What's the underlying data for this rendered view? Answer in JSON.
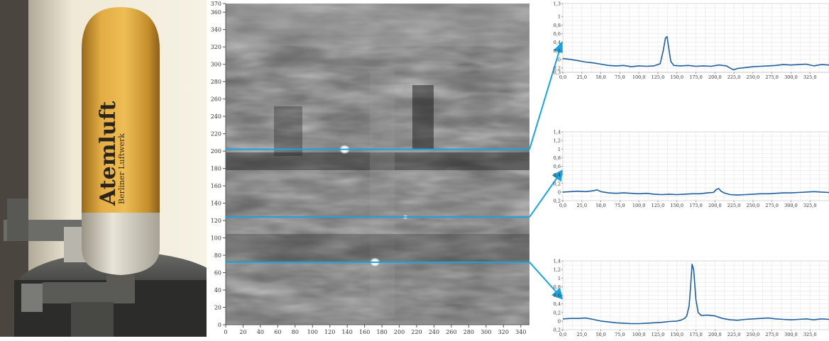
{
  "photo": {
    "cylinder_label": "Atemluft",
    "cylinder_sublabel": "Berliner Luftwerk",
    "colors": {
      "cylinder": "#d9a437",
      "background": "#e8e3d2"
    }
  },
  "scan_chart": {
    "type": "heatmap",
    "xlim": [
      0,
      350
    ],
    "ylim": [
      0,
      370
    ],
    "x_ticks": [
      0,
      20,
      40,
      60,
      80,
      100,
      120,
      140,
      160,
      180,
      200,
      220,
      240,
      260,
      280,
      300,
      320,
      340
    ],
    "y_ticks": [
      0,
      20,
      40,
      60,
      80,
      100,
      120,
      140,
      160,
      180,
      200,
      220,
      240,
      260,
      280,
      300,
      320,
      340,
      360,
      370
    ],
    "y_tick_labels": [
      "0",
      "20",
      "40",
      "60",
      "80",
      "100",
      "120",
      "140",
      "160",
      "180",
      "200",
      "220",
      "240",
      "260",
      "280",
      "300",
      "320",
      "340",
      "360",
      "370"
    ],
    "x_tick_labels": [
      "0",
      "20",
      "40",
      "60",
      "80",
      "100",
      "120",
      "140",
      "160",
      "180",
      "200",
      "220",
      "240",
      "260",
      "280",
      "300",
      "320",
      "340"
    ],
    "grayscale": true,
    "bright_spots": [
      {
        "x": 137,
        "y": 202
      },
      {
        "x": 172,
        "y": 72
      },
      {
        "x": 207,
        "y": 124
      }
    ],
    "scan_lines": [
      {
        "y": 202,
        "color": "#1aa3e0"
      },
      {
        "y": 124,
        "color": "#1aa3e0"
      },
      {
        "y": 72,
        "color": "#1aa3e0"
      }
    ]
  },
  "chart_data": [
    {
      "type": "line",
      "xlim": [
        0,
        350
      ],
      "ylim": [
        -0.3,
        1.3
      ],
      "x_tick_labels": [
        "0,0",
        "25,0",
        "50,0",
        "75,0",
        "100,0",
        "125,0",
        "150,0",
        "175,0",
        "200,0",
        "225,0",
        "250,0",
        "275,0",
        "300,0",
        "325,0"
      ],
      "y_tick_labels": [
        "1,3",
        "1",
        "0,8",
        "0,6",
        "0,4",
        "0,2",
        "0",
        "-0,2",
        "-0,3"
      ],
      "y_tick_values": [
        1.3,
        1.0,
        0.8,
        0.6,
        0.4,
        0.2,
        0.0,
        -0.2,
        -0.3
      ],
      "series": [
        {
          "color": "#1f5f9e",
          "x": [
            0,
            10,
            20,
            30,
            40,
            50,
            60,
            70,
            80,
            90,
            100,
            110,
            120,
            128,
            132,
            135,
            137,
            139,
            142,
            146,
            155,
            165,
            175,
            185,
            195,
            205,
            215,
            222,
            225,
            230,
            240,
            250,
            260,
            270,
            280,
            290,
            300,
            310,
            320,
            330,
            340,
            350
          ],
          "y": [
            0.02,
            0.0,
            -0.03,
            -0.06,
            -0.08,
            -0.11,
            -0.14,
            -0.15,
            -0.14,
            -0.17,
            -0.15,
            -0.16,
            -0.15,
            -0.1,
            0.2,
            0.5,
            0.53,
            0.3,
            -0.05,
            -0.14,
            -0.15,
            -0.14,
            -0.16,
            -0.15,
            -0.16,
            -0.13,
            -0.15,
            -0.22,
            -0.24,
            -0.21,
            -0.19,
            -0.17,
            -0.16,
            -0.15,
            -0.14,
            -0.12,
            -0.13,
            -0.12,
            -0.11,
            -0.15,
            -0.12,
            -0.13
          ]
        }
      ]
    },
    {
      "type": "line",
      "xlim": [
        0,
        350
      ],
      "ylim": [
        -0.2,
        1.4
      ],
      "x_tick_labels": [
        "0,0",
        "25,0",
        "50,0",
        "75,0",
        "100,0",
        "125,0",
        "150,0",
        "175,0",
        "200,0",
        "225,0",
        "250,0",
        "275,0",
        "300,0",
        "325,0"
      ],
      "y_tick_labels": [
        "1,4",
        "1,2",
        "1",
        "0,8",
        "0,6",
        "0,4",
        "0,2",
        "0",
        "-0,2"
      ],
      "y_tick_values": [
        1.4,
        1.2,
        1.0,
        0.8,
        0.6,
        0.4,
        0.2,
        0.0,
        -0.2
      ],
      "series": [
        {
          "color": "#1f5f9e",
          "x": [
            0,
            10,
            20,
            30,
            40,
            45,
            50,
            60,
            70,
            80,
            90,
            100,
            110,
            120,
            130,
            140,
            150,
            160,
            170,
            180,
            190,
            198,
            202,
            205,
            208,
            212,
            220,
            230,
            240,
            250,
            260,
            270,
            280,
            290,
            300,
            310,
            320,
            330,
            340,
            350
          ],
          "y": [
            0.0,
            0.01,
            0.02,
            0.01,
            0.03,
            0.05,
            0.01,
            -0.02,
            -0.03,
            -0.02,
            -0.03,
            -0.04,
            -0.03,
            -0.05,
            -0.06,
            -0.05,
            -0.06,
            -0.05,
            -0.04,
            -0.04,
            -0.02,
            -0.01,
            0.06,
            0.08,
            0.02,
            -0.02,
            -0.06,
            -0.07,
            -0.06,
            -0.05,
            -0.04,
            -0.04,
            -0.03,
            -0.02,
            -0.02,
            -0.01,
            0.0,
            0.01,
            0.0,
            -0.01
          ]
        }
      ]
    },
    {
      "type": "line",
      "xlim": [
        0,
        350
      ],
      "ylim": [
        -0.2,
        1.4
      ],
      "x_tick_labels": [
        "0,0",
        "25,0",
        "50,0",
        "75,0",
        "100,0",
        "125,0",
        "150,0",
        "175,0",
        "200,0",
        "225,0",
        "250,0",
        "275,0",
        "300,0",
        "325,0"
      ],
      "y_tick_labels": [
        "1,4",
        "1,2",
        "1",
        "0,8",
        "0,6",
        "0,4",
        "0,2",
        "0",
        "-0,2"
      ],
      "y_tick_values": [
        1.4,
        1.2,
        1.0,
        0.8,
        0.6,
        0.4,
        0.2,
        0.0,
        -0.2
      ],
      "series": [
        {
          "color": "#1f5f9e",
          "x": [
            0,
            10,
            20,
            30,
            40,
            50,
            60,
            70,
            80,
            90,
            100,
            110,
            120,
            130,
            140,
            150,
            155,
            160,
            163,
            166,
            168,
            170,
            172,
            175,
            178,
            182,
            190,
            200,
            210,
            220,
            230,
            240,
            250,
            260,
            270,
            280,
            290,
            300,
            310,
            320,
            330,
            340,
            350
          ],
          "y": [
            0.05,
            0.06,
            0.06,
            0.07,
            0.04,
            0.0,
            -0.02,
            -0.04,
            -0.05,
            -0.06,
            -0.06,
            -0.05,
            -0.04,
            -0.03,
            -0.01,
            0.0,
            0.02,
            0.06,
            0.12,
            0.35,
            0.8,
            1.32,
            1.2,
            0.5,
            0.2,
            0.13,
            0.14,
            0.12,
            0.06,
            0.03,
            0.02,
            0.04,
            0.05,
            0.06,
            0.07,
            0.05,
            0.04,
            0.03,
            0.04,
            0.05,
            0.03,
            0.05,
            0.04
          ]
        }
      ]
    }
  ]
}
